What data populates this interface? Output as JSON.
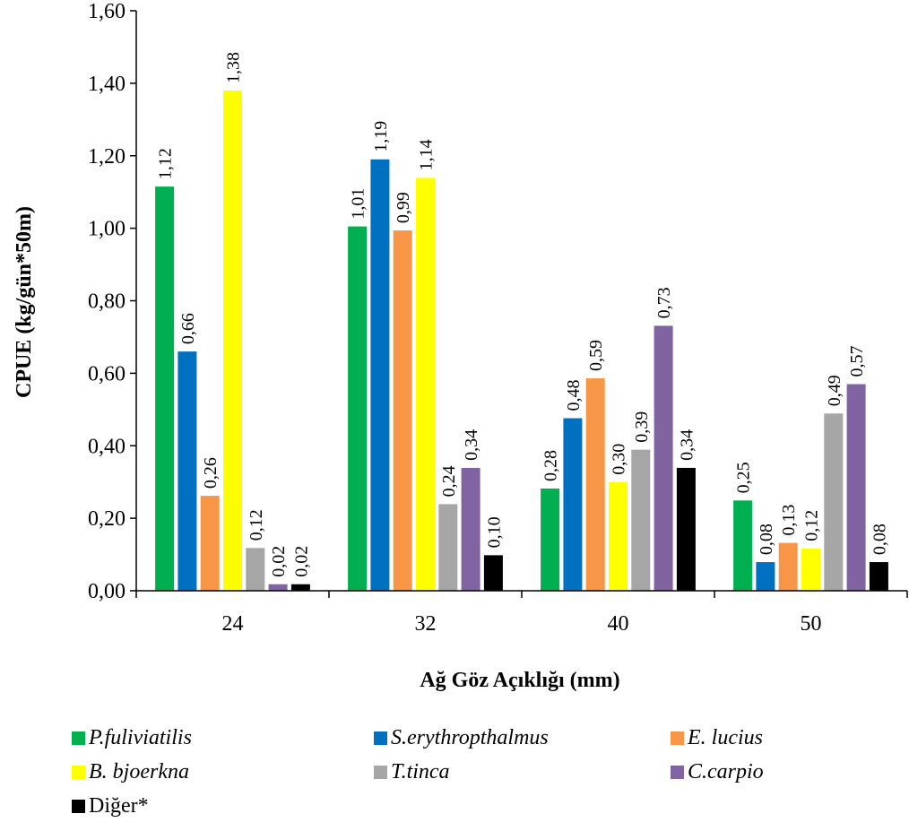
{
  "chart_data": {
    "type": "bar",
    "title": "",
    "xlabel": "Ağ Göz Açıklığı (mm)",
    "ylabel": "CPUE (kg/gün*50m)",
    "ylim": [
      0,
      1.6
    ],
    "yticks": [
      "0,00",
      "0,20",
      "0,40",
      "0,60",
      "0,80",
      "1,00",
      "1,20",
      "1,40",
      "1,60"
    ],
    "categories": [
      "24",
      "32",
      "40",
      "50"
    ],
    "legend_position": "bottom",
    "grid": false,
    "series": [
      {
        "name": "P.fuliviatilis",
        "color": "#00b050",
        "italic": true,
        "values": [
          1.115,
          1.005,
          0.282,
          0.249
        ],
        "labels": [
          "1,12",
          "1,01",
          "0,28",
          "0,25"
        ]
      },
      {
        "name": "S.erythropthalmus",
        "color": "#0070c0",
        "italic": true,
        "values": [
          0.66,
          1.19,
          0.476,
          0.079
        ],
        "labels": [
          "0,66",
          "1,19",
          "0,48",
          "0,08"
        ]
      },
      {
        "name": "E. lucius",
        "color": "#f79646",
        "italic": true,
        "values": [
          0.262,
          0.994,
          0.586,
          0.132
        ],
        "labels": [
          "0,26",
          "0,99",
          "0,59",
          "0,13"
        ]
      },
      {
        "name": "B. bjoerkna",
        "color": "#ffff00",
        "italic": true,
        "values": [
          1.38,
          1.139,
          0.3,
          0.117
        ],
        "labels": [
          "1,38",
          "1,14",
          "0,30",
          "0,12"
        ]
      },
      {
        "name": "T.tinca",
        "color": "#a6a6a6",
        "italic": true,
        "values": [
          0.118,
          0.239,
          0.389,
          0.489
        ],
        "labels": [
          "0,12",
          "0,24",
          "0,39",
          "0,49"
        ]
      },
      {
        "name": "C.carpio",
        "color": "#8064a2",
        "italic": true,
        "values": [
          0.018,
          0.339,
          0.731,
          0.57
        ],
        "labels": [
          "0,02",
          "0,34",
          "0,73",
          "0,57"
        ]
      },
      {
        "name": "Diğer*",
        "color": "#000000",
        "italic": false,
        "values": [
          0.018,
          0.098,
          0.339,
          0.079
        ],
        "labels": [
          "0,02",
          "0,10",
          "0,34",
          "0,08"
        ]
      }
    ]
  }
}
